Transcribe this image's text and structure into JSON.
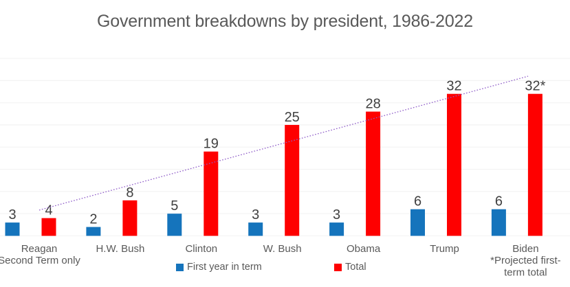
{
  "title": "Government breakdowns by president, 1986-2022",
  "colors": {
    "blue": "#1574BC",
    "red": "#FE0000",
    "trendline": "#8E5BC8",
    "gridline": "#F4F4F4",
    "title_text": "#595959",
    "axis_text": "#595959",
    "value_text": "#404040"
  },
  "legend": [
    {
      "name": "First year in term",
      "color_key": "blue"
    },
    {
      "name": "Total",
      "color_key": "red"
    }
  ],
  "chart_data": {
    "type": "bar",
    "title": "Government breakdowns by president, 1986-2022",
    "categories": [
      {
        "label": "Reagan",
        "sublabels": [
          "Second Term only"
        ]
      },
      {
        "label": "H.W. Bush",
        "sublabels": []
      },
      {
        "label": "Clinton",
        "sublabels": []
      },
      {
        "label": "W. Bush",
        "sublabels": []
      },
      {
        "label": "Obama",
        "sublabels": []
      },
      {
        "label": "Trump",
        "sublabels": []
      },
      {
        "label": "Biden",
        "sublabels": [
          "*Projected first-",
          "term total"
        ]
      }
    ],
    "series": [
      {
        "name": "First year in term",
        "color_key": "blue",
        "values": [
          3,
          2,
          5,
          3,
          3,
          6,
          6
        ],
        "labels": [
          "3",
          "2",
          "5",
          "3",
          "3",
          "6",
          "6"
        ]
      },
      {
        "name": "Total",
        "color_key": "red",
        "values": [
          4,
          8,
          19,
          25,
          28,
          32,
          32
        ],
        "labels": [
          "4",
          "8",
          "19",
          "25",
          "28",
          "32",
          "32*"
        ]
      }
    ],
    "xlabel": "",
    "ylabel": "",
    "ylim": [
      0,
      40
    ],
    "gridline_step": 5,
    "grid": true,
    "y_axis_labels_shown": false,
    "trendline": {
      "of_series": "Total",
      "style": "dotted"
    },
    "legend_position": "bottom"
  }
}
